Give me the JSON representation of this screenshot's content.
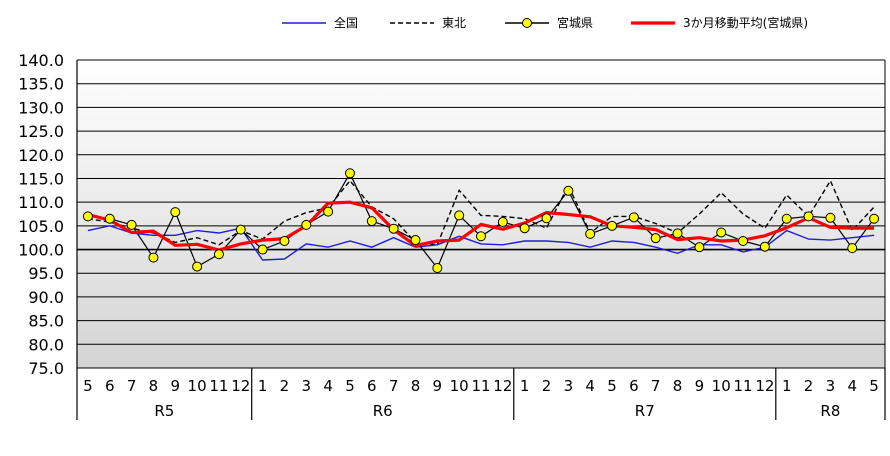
{
  "chart_data": {
    "type": "line",
    "title": "",
    "xlabel": "",
    "ylabel": "",
    "ylim": [
      75,
      140
    ],
    "ytick_step": 5,
    "baseline": 100,
    "y_tick_labels": [
      "75.0",
      "80.0",
      "85.0",
      "90.0",
      "95.0",
      "100.0",
      "105.0",
      "110.0",
      "115.0",
      "120.0",
      "125.0",
      "130.0",
      "135.0",
      "140.0"
    ],
    "grid": "horizontal",
    "legend_position": "top",
    "x_labels": [
      "5",
      "6",
      "7",
      "8",
      "9",
      "10",
      "11",
      "12",
      "1",
      "2",
      "3",
      "4",
      "5",
      "6",
      "7",
      "8",
      "9",
      "10",
      "11",
      "12",
      "1",
      "2",
      "3",
      "4",
      "5",
      "6",
      "7",
      "8",
      "9",
      "10",
      "11",
      "12",
      "1",
      "2",
      "3",
      "4",
      "5"
    ],
    "groups": [
      {
        "label": "R5",
        "start": 0,
        "count": 8
      },
      {
        "label": "R6",
        "start": 8,
        "count": 12
      },
      {
        "label": "R7",
        "start": 20,
        "count": 12
      },
      {
        "label": "R8",
        "start": 32,
        "count": 5
      }
    ],
    "series": [
      {
        "name": "全国",
        "color": "#1f1fd8",
        "style": "solid",
        "values": [
          104.0,
          105.0,
          103.5,
          103.0,
          103.0,
          104.0,
          103.5,
          104.5,
          97.8,
          98.0,
          101.2,
          100.5,
          101.8,
          100.5,
          102.5,
          100.5,
          101.0,
          102.8,
          101.2,
          101.0,
          101.8,
          101.8,
          101.5,
          100.5,
          101.8,
          101.5,
          100.5,
          99.2,
          101.0,
          101.0,
          99.5,
          100.5,
          104.0,
          102.2,
          102.0,
          102.5,
          103.0
        ]
      },
      {
        "name": "東北",
        "color": "#000000",
        "style": "dashed",
        "values": [
          106.5,
          105.8,
          104.5,
          103.5,
          101.5,
          102.5,
          101.0,
          104.0,
          102.2,
          106.0,
          107.8,
          108.8,
          114.5,
          109.0,
          106.5,
          101.5,
          101.0,
          112.5,
          107.2,
          107.0,
          106.5,
          104.5,
          113.5,
          103.5,
          107.0,
          107.0,
          105.5,
          103.5,
          107.5,
          112.0,
          107.5,
          104.5,
          111.5,
          107.0,
          114.5,
          104.0,
          109.0
        ]
      },
      {
        "name": "宮城県",
        "color": "#000000",
        "marker_color": "#ffff00",
        "style": "solid-marker",
        "values": [
          107.0,
          106.5,
          105.2,
          98.3,
          107.9,
          96.4,
          99.0,
          104.2,
          100.0,
          101.8,
          105.2,
          108.0,
          116.1,
          106.0,
          104.4,
          102.0,
          96.1,
          107.2,
          102.8,
          105.8,
          104.5,
          106.6,
          112.4,
          103.3,
          105.0,
          106.8,
          102.4,
          103.4,
          100.5,
          103.6,
          101.8,
          100.6,
          106.5,
          107.0,
          106.7,
          100.3,
          106.5
        ]
      },
      {
        "name": "3か月移動平均(宮城県)",
        "color": "#ff0000",
        "style": "thick",
        "values": [
          107.4,
          106.2,
          103.6,
          103.9,
          100.9,
          101.1,
          99.9,
          101.2,
          102.0,
          102.3,
          105.0,
          109.8,
          110.0,
          108.8,
          104.2,
          100.8,
          101.8,
          102.0,
          105.3,
          104.3,
          105.6,
          107.8,
          107.4,
          106.9,
          105.0,
          104.7,
          104.2,
          102.1,
          102.5,
          101.8,
          102.0,
          102.9,
          104.6,
          106.7,
          104.7,
          104.5,
          104.5
        ]
      }
    ]
  }
}
